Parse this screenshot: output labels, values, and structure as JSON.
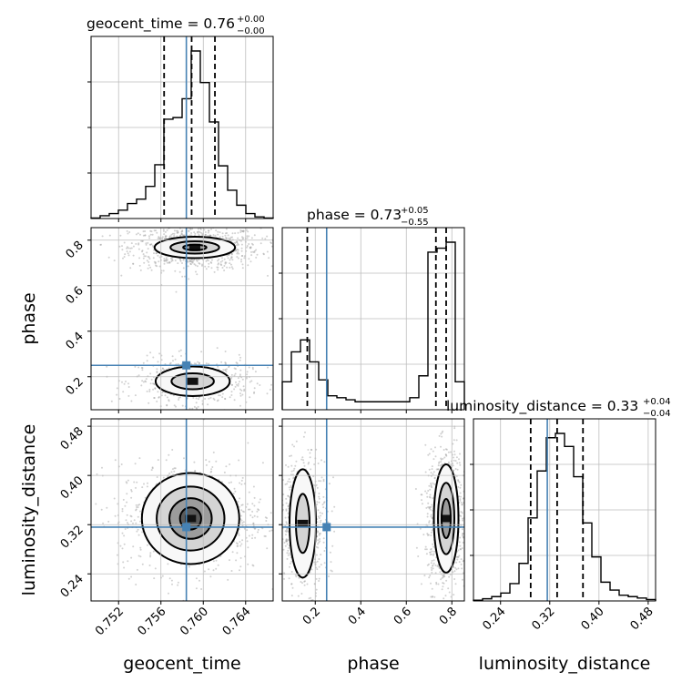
{
  "chart_data": {
    "type": "corner",
    "parameters": [
      "geocent_time",
      "phase",
      "luminosity_distance"
    ],
    "truths": [
      0.7584,
      0.25,
      0.316
    ],
    "truth_color": "#4682b4",
    "ranges": [
      [
        0.7494,
        0.7666
      ],
      [
        0.055,
        0.855
      ],
      [
        0.196,
        0.492
      ]
    ],
    "ticks": {
      "geocent_time": {
        "values": [
          0.752,
          0.756,
          0.76,
          0.764
        ],
        "labels": [
          "0.752",
          "0.756",
          "0.760",
          "0.764"
        ]
      },
      "phase": {
        "values": [
          0.2,
          0.4,
          0.6,
          0.8
        ],
        "labels": [
          "0.2",
          "0.4",
          "0.6",
          "0.8"
        ]
      },
      "luminosity_distance": {
        "values": [
          0.24,
          0.32,
          0.4,
          0.48
        ],
        "labels": [
          "0.24",
          "0.32",
          "0.40",
          "0.48"
        ]
      }
    },
    "titles": [
      {
        "parameter": "geocent_time",
        "text": "geocent_time = 0.76",
        "upper": "+0.00",
        "lower": "−0.00"
      },
      {
        "parameter": "phase",
        "text": "phase = 0.73",
        "upper": "+0.05",
        "lower": "−0.55"
      },
      {
        "parameter": "luminosity_distance",
        "text": "luminosity_distance = 0.33",
        "upper": "+0.04",
        "lower": "−0.04"
      }
    ],
    "quantiles": {
      "geocent_time": [
        0.7563,
        0.7589,
        0.7611
      ],
      "phase": [
        0.165,
        0.73,
        0.775
      ],
      "luminosity_distance": [
        0.289,
        0.332,
        0.374
      ]
    },
    "histograms": {
      "geocent_time": {
        "edges": [
          0.7494,
          0.75026,
          0.75112,
          0.75198,
          0.75284,
          0.7537,
          0.75456,
          0.75542,
          0.75628,
          0.75714,
          0.758,
          0.75886,
          0.75972,
          0.76058,
          0.76144,
          0.7623,
          0.76316,
          0.76402,
          0.76488,
          0.76574,
          0.7666
        ],
        "counts": [
          1,
          5,
          9,
          15,
          27,
          35,
          58,
          97,
          179,
          182,
          216,
          302,
          245,
          174,
          95,
          51,
          24,
          9,
          3,
          1
        ]
      },
      "phase": {
        "edges": [
          0.055,
          0.095,
          0.135,
          0.175,
          0.215,
          0.255,
          0.295,
          0.335,
          0.375,
          0.415,
          0.455,
          0.495,
          0.535,
          0.575,
          0.615,
          0.655,
          0.695,
          0.735,
          0.775,
          0.815,
          0.855
        ],
        "counts": [
          28,
          58,
          70,
          48,
          30,
          14,
          12,
          10,
          8,
          8,
          8,
          8,
          8,
          8,
          12,
          34,
          158,
          162,
          168,
          28
        ]
      },
      "luminosity_distance": {
        "edges": [
          0.196,
          0.2108,
          0.2256,
          0.2404,
          0.2552,
          0.27,
          0.2848,
          0.2996,
          0.3144,
          0.3292,
          0.344,
          0.3588,
          0.3736,
          0.3884,
          0.4032,
          0.418,
          0.4328,
          0.4476,
          0.4624,
          0.4772,
          0.492
        ],
        "counts": [
          1,
          3,
          6,
          11,
          24,
          52,
          115,
          180,
          226,
          232,
          214,
          172,
          108,
          61,
          26,
          15,
          8,
          6,
          4,
          2
        ]
      }
    },
    "panels": [
      {
        "x": "geocent_time",
        "y": "phase",
        "modes": [
          {
            "center": [
              0.7592,
              0.768
            ],
            "spread": [
              0.0017,
              0.027
            ],
            "levels": [
              [
                0.0011,
                0.012
              ],
              [
                0.0023,
                0.027
              ],
              [
                0.0038,
                0.047
              ]
            ]
          },
          {
            "center": [
              0.759,
              0.18
            ],
            "spread": [
              0.0015,
              0.028
            ],
            "levels": [
              [
                0.002,
                0.035
              ],
              [
                0.0035,
                0.065
              ]
            ]
          }
        ],
        "truth_point": [
          0.7584,
          0.25
        ]
      },
      {
        "x": "geocent_time",
        "y": "luminosity_distance",
        "modes": [
          {
            "center": [
              0.7588,
              0.33
            ],
            "spread": [
              0.0019,
              0.025
            ],
            "levels": [
              [
                0.001,
                0.018
              ],
              [
                0.002,
                0.033
              ],
              [
                0.0032,
                0.052
              ],
              [
                0.0046,
                0.074
              ]
            ]
          }
        ],
        "truth_point": [
          0.7584,
          0.316
        ]
      },
      {
        "x": "phase",
        "y": "luminosity_distance",
        "modes": [
          {
            "center": [
              0.775,
              0.33
            ],
            "spread": [
              0.025,
              0.03
            ],
            "levels": [
              [
                0.02,
                0.032
              ],
              [
                0.036,
                0.058
              ],
              [
                0.054,
                0.088
              ]
            ]
          },
          {
            "center": [
              0.145,
              0.322
            ],
            "spread": [
              0.03,
              0.03
            ],
            "levels": [
              [
                0.03,
                0.048
              ],
              [
                0.058,
                0.088
              ]
            ]
          }
        ],
        "truth_point": [
          0.25,
          0.316
        ]
      }
    ]
  }
}
